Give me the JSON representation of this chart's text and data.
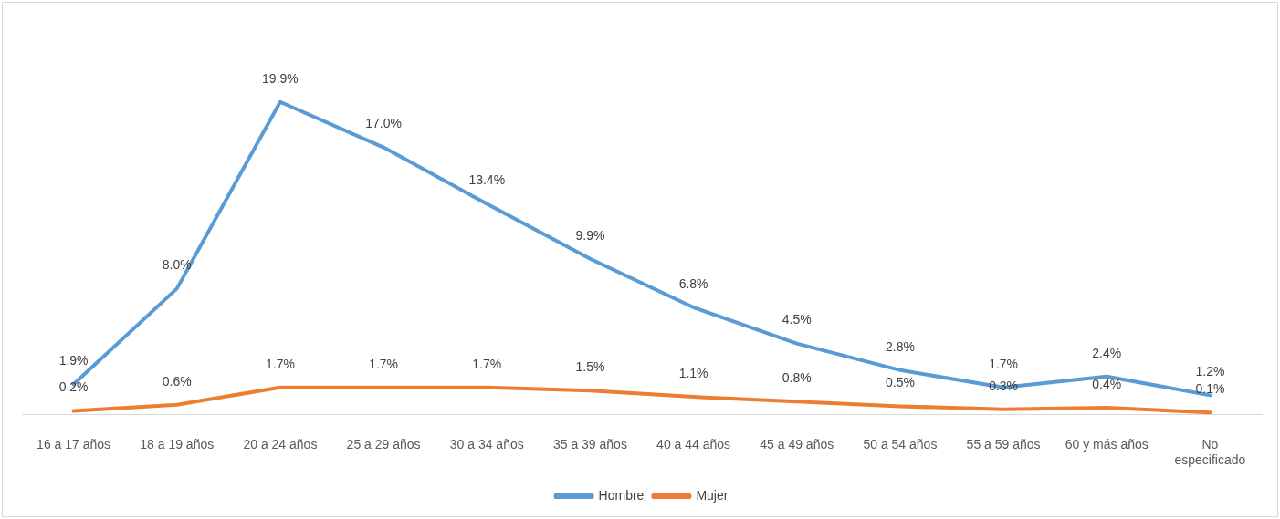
{
  "chart_data": {
    "type": "line",
    "categories": [
      "16 a 17 años",
      "18 a 19 años",
      "20 a 24 años",
      "25 a 29 años",
      "30 a 34 años",
      "35 a 39 años",
      "40 a 44 años",
      "45 a 49 años",
      "50 a 54 años",
      "55 a 59 años",
      "60 y más años",
      "No especificado"
    ],
    "series": [
      {
        "name": "Hombre",
        "color": "#5b9bd5",
        "values": [
          1.9,
          8.0,
          19.9,
          17.0,
          13.4,
          9.9,
          6.8,
          4.5,
          2.8,
          1.7,
          2.4,
          1.2
        ],
        "value_labels": [
          "1.9%",
          "8.0%",
          "19.9%",
          "17.0%",
          "13.4%",
          "9.9%",
          "6.8%",
          "4.5%",
          "2.8%",
          "1.7%",
          "2.4%",
          "1.2%"
        ]
      },
      {
        "name": "Mujer",
        "color": "#ed7d31",
        "values": [
          0.2,
          0.6,
          1.7,
          1.7,
          1.7,
          1.5,
          1.1,
          0.8,
          0.5,
          0.3,
          0.4,
          0.1
        ],
        "value_labels": [
          "0.2%",
          "0.6%",
          "1.7%",
          "1.7%",
          "1.7%",
          "1.5%",
          "1.1%",
          "0.8%",
          "0.5%",
          "0.3%",
          "0.4%",
          "0.1%"
        ]
      }
    ],
    "legend": "bottom",
    "marker": "none"
  }
}
